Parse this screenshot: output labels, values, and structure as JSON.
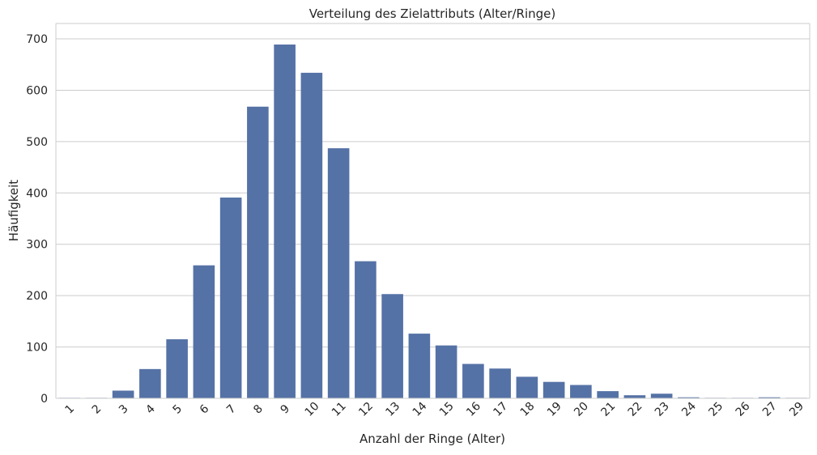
{
  "chart_data": {
    "type": "bar",
    "title": "Verteilung des Zielattributs (Alter/Ringe)",
    "xlabel": "Anzahl der Ringe (Alter)",
    "ylabel": "Häufigkeit",
    "categories": [
      "1",
      "2",
      "3",
      "4",
      "5",
      "6",
      "7",
      "8",
      "9",
      "10",
      "11",
      "12",
      "13",
      "14",
      "15",
      "16",
      "17",
      "18",
      "19",
      "20",
      "21",
      "22",
      "23",
      "24",
      "25",
      "26",
      "27",
      "29"
    ],
    "values": [
      1,
      1,
      15,
      57,
      115,
      259,
      391,
      568,
      689,
      634,
      487,
      267,
      203,
      126,
      103,
      67,
      58,
      42,
      32,
      26,
      14,
      6,
      9,
      2,
      1,
      1,
      2,
      1
    ],
    "ylim": [
      0,
      730
    ],
    "yticks": [
      0,
      100,
      200,
      300,
      400,
      500,
      600,
      700
    ],
    "grid": "horizontal",
    "bar_color": "#5572a6",
    "grid_color": "#cccccc",
    "xtick_rotation": -45
  }
}
